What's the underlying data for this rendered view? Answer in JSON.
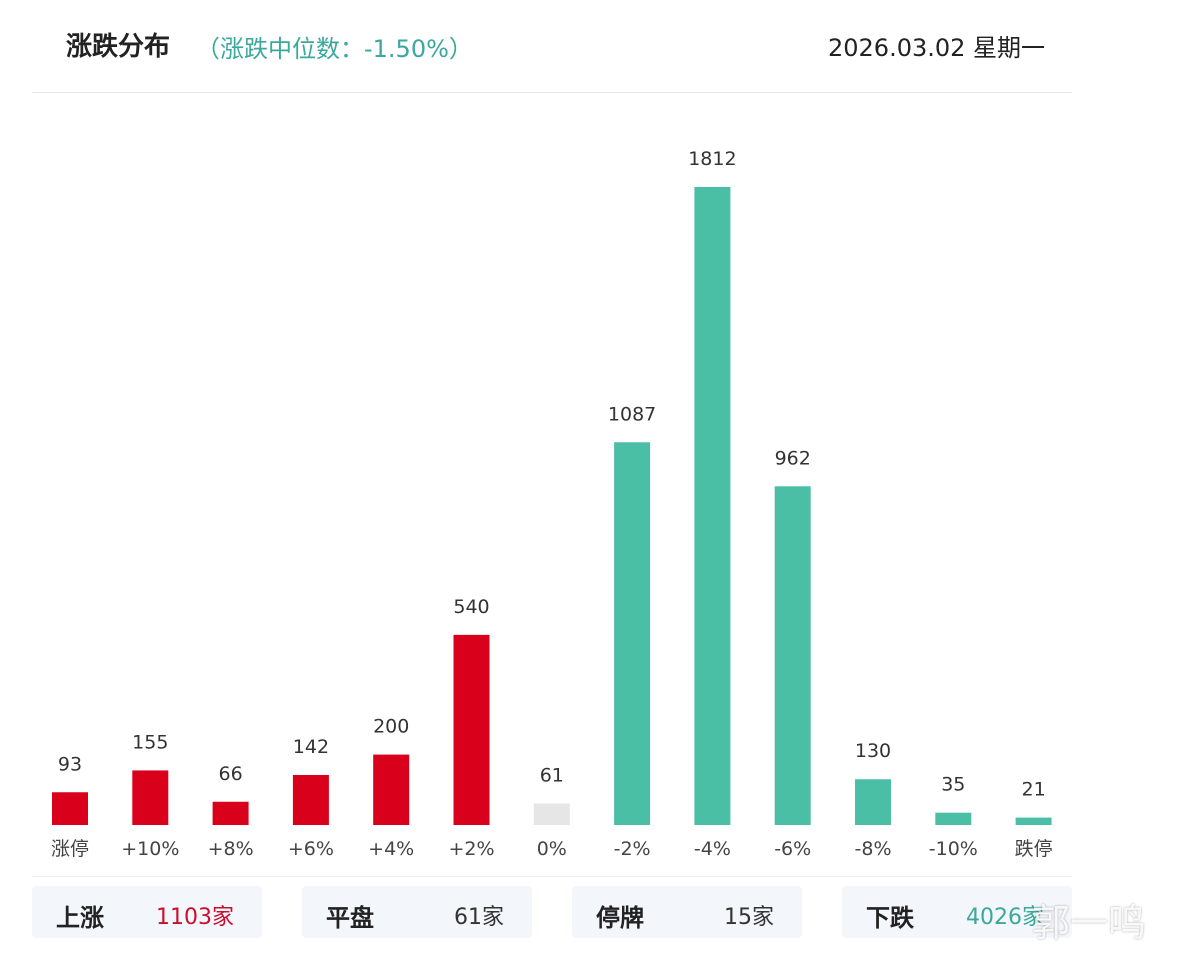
{
  "header": {
    "title": "涨跌分布",
    "subtitle": "（涨跌中位数：-1.50%）",
    "date": "2026.03.02 星期一"
  },
  "colors": {
    "up": "#d9001b",
    "flat": "#e6e6e6",
    "down": "#4bbfa5",
    "label": "#333333"
  },
  "chart_data": {
    "type": "bar",
    "title": "涨跌分布",
    "categories": [
      "涨停",
      "+10%",
      "+8%",
      "+6%",
      "+4%",
      "+2%",
      "0%",
      "-2%",
      "-4%",
      "-6%",
      "-8%",
      "-10%",
      "跌停"
    ],
    "values": [
      93,
      155,
      66,
      142,
      200,
      540,
      61,
      1087,
      1812,
      962,
      130,
      35,
      21
    ],
    "bar_colors": [
      "up",
      "up",
      "up",
      "up",
      "up",
      "up",
      "flat",
      "down",
      "down",
      "down",
      "down",
      "down",
      "down"
    ],
    "ylim": [
      0,
      1812
    ],
    "grid": false,
    "legend": "none"
  },
  "summary": [
    {
      "label": "上涨",
      "value": "1103家",
      "color": "#c8102e"
    },
    {
      "label": "平盘",
      "value": "61家",
      "color": "#333333"
    },
    {
      "label": "停牌",
      "value": "15家",
      "color": "#333333"
    },
    {
      "label": "下跌",
      "value": "4026家",
      "color": "#3aa89a"
    }
  ],
  "watermark": "郭一鸣"
}
